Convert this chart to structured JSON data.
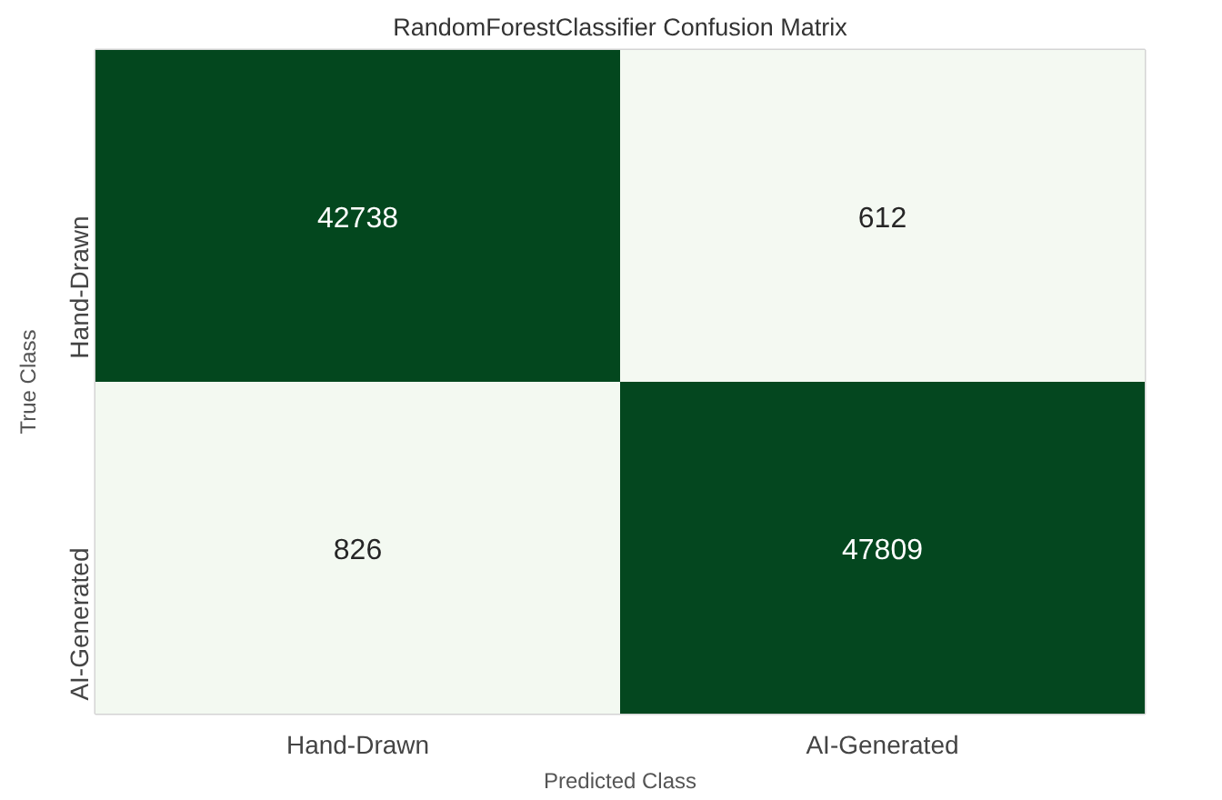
{
  "chart_data": {
    "type": "heatmap",
    "title": "RandomForestClassifier Confusion Matrix",
    "xlabel": "Predicted Class",
    "ylabel": "True Class",
    "categories": [
      "Hand-Drawn",
      "AI-Generated"
    ],
    "y_categories": [
      "Hand-Drawn",
      "AI-Generated"
    ],
    "cells": [
      [
        42738,
        612
      ],
      [
        826,
        47809
      ]
    ],
    "colors": [
      "#f7fcf5",
      "#00441b"
    ],
    "data_labels": true
  }
}
